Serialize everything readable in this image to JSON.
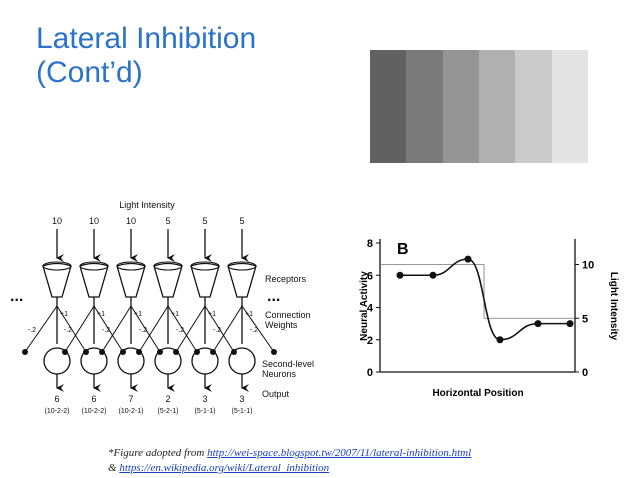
{
  "slide": {
    "title_line1": "Lateral Inhibition",
    "title_line2": "(Cont’d)",
    "title_color": "#2a73c9"
  },
  "gradient_bar": {
    "shades": [
      "#616161",
      "#7a7a7a",
      "#959595",
      "#b0b0b0",
      "#cbcbcb",
      "#e4e4e4"
    ]
  },
  "network": {
    "light_intensity_label": "Light Intensity",
    "inputs": [
      "10",
      "10",
      "10",
      "5",
      "5",
      "5"
    ],
    "excitatory_weights": [
      "+1",
      "+1",
      "+1",
      "+1",
      "+1",
      "+1"
    ],
    "inhibitory_weights": [
      "-.2",
      "-.2",
      "-.2",
      "-.2",
      "-.2",
      "-.2",
      "-.2",
      "-.2",
      "-.2",
      "-.2",
      "-.2",
      "-.2"
    ],
    "outputs": [
      "6",
      "6",
      "7",
      "2",
      "3",
      "3"
    ],
    "output_formulas": [
      "(10-2-2)",
      "(10-2-2)",
      "(10-2-1)",
      "(5-2-1)",
      "(5-1-1)",
      "(5-1-1)"
    ],
    "ellipsis": "...",
    "labels": {
      "receptors": "Receptors",
      "connection_weights_line1": "Connection",
      "connection_weights_line2": "Weights",
      "second_level_line1": "Second-level",
      "second_level_line2": "Neurons",
      "output": "Output"
    }
  },
  "chart_data": {
    "type": "line",
    "panel_label": "B",
    "xlabel": "Horizontal Position",
    "ylabel": "Neural Activity",
    "ylabel_right": "Light Intensity",
    "ylim": [
      0,
      8
    ],
    "y_ticks": [
      "0",
      "2",
      "4",
      "6",
      "8"
    ],
    "y_right_ticks": [
      "0",
      "5",
      "10"
    ],
    "series": [
      {
        "name": "Neural Activity",
        "x": [
          1,
          2,
          3,
          4,
          5,
          6
        ],
        "values": [
          6,
          6,
          7,
          2,
          3,
          3
        ]
      },
      {
        "name": "Light Intensity",
        "x": [
          1,
          2,
          3,
          4,
          5,
          6
        ],
        "values": [
          10,
          10,
          10,
          5,
          5,
          5
        ]
      }
    ]
  },
  "caption": {
    "line1_prefix": "*Figure adopted from ",
    "link1": "http://wei-space.blogspot.tw/2007/11/lateral-inhibition.html",
    "line2_prefix": "& ",
    "link2": "https://en.wikipedia.org/wiki/Lateral_inhibition"
  }
}
